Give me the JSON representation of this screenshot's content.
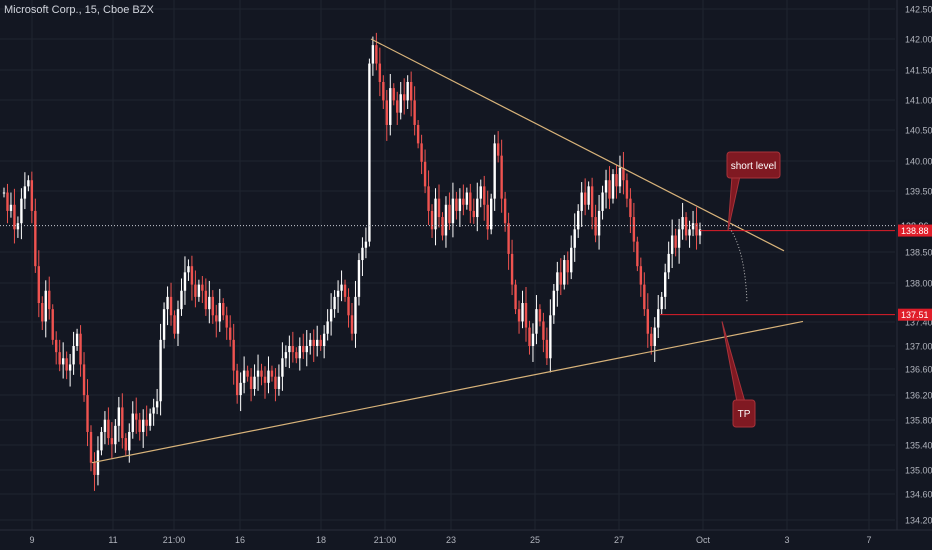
{
  "header": {
    "symbol_title": "Microsoft Corp., 15, Cboe BZX"
  },
  "colors": {
    "background": "#131722",
    "grid": "#1f2430",
    "axis_text": "#b2b5be",
    "candle_up": "#ffffff",
    "candle_down": "#ef5350",
    "trendline": "#d8b37a",
    "price_label": "#e01e2a",
    "callout_fill": "#801922",
    "current_line": "#c9ccd4"
  },
  "chart_data": {
    "type": "candlestick",
    "title": "Microsoft Corp., 15, Cboe BZX",
    "x_tick_labels": [
      "9",
      "11",
      "21:00",
      "16",
      "18",
      "21:00",
      "23",
      "25",
      "27",
      "Oct",
      "3",
      "7"
    ],
    "y_tick_labels": [
      "142.50",
      "142.00",
      "141.50",
      "141.00",
      "140.50",
      "140.00",
      "139.50",
      "138.50",
      "138.00",
      "137.40",
      "137.00",
      "136.60",
      "136.20",
      "135.80",
      "135.40",
      "135.00",
      "134.60",
      "134.20"
    ],
    "ylim": [
      134.1,
      142.6
    ],
    "price_labels": [
      {
        "value": 138.96,
        "text": "138.96",
        "style": "plain"
      },
      {
        "value": 138.88,
        "text": "138.88",
        "style": "red"
      },
      {
        "value": 137.51,
        "text": "137.51",
        "style": "red"
      }
    ],
    "close_series": [
      139.5,
      139.2,
      139.3,
      138.9,
      139.0,
      139.4,
      139.6,
      139.7,
      139.2,
      138.3,
      137.7,
      137.4,
      137.9,
      137.6,
      137.1,
      136.9,
      136.7,
      136.8,
      136.6,
      136.7,
      137.0,
      137.2,
      136.7,
      136.2,
      135.6,
      135.1,
      134.9,
      135.3,
      135.6,
      135.8,
      135.5,
      135.4,
      135.7,
      136.0,
      135.5,
      135.3,
      135.6,
      135.9,
      135.8,
      135.6,
      135.8,
      135.7,
      135.9,
      136.0,
      136.1,
      137.1,
      137.6,
      137.8,
      137.5,
      137.2,
      137.6,
      137.9,
      138.2,
      138.3,
      138.0,
      137.8,
      138.0,
      137.9,
      137.6,
      137.8,
      137.5,
      137.4,
      137.7,
      137.5,
      137.3,
      137.1,
      136.6,
      136.2,
      136.4,
      136.6,
      136.5,
      136.3,
      136.5,
      136.6,
      136.5,
      136.4,
      136.6,
      136.5,
      136.3,
      136.5,
      136.8,
      136.9,
      137.0,
      136.9,
      136.8,
      137.0,
      136.9,
      137.0,
      137.1,
      137.0,
      137.1,
      137.0,
      137.2,
      137.4,
      137.6,
      137.8,
      137.9,
      138.0,
      137.8,
      137.5,
      137.2,
      137.8,
      138.4,
      138.6,
      138.7,
      141.6,
      141.9,
      141.6,
      141.3,
      141.0,
      140.6,
      141.2,
      141.0,
      140.8,
      141.1,
      141.0,
      141.3,
      141.0,
      140.6,
      140.3,
      140.0,
      139.6,
      139.2,
      138.9,
      139.4,
      139.1,
      138.8,
      139.3,
      139.0,
      139.4,
      139.2,
      139.4,
      139.3,
      139.5,
      139.2,
      139.1,
      139.4,
      139.6,
      139.3,
      138.9,
      139.4,
      140.3,
      140.1,
      139.4,
      139.0,
      138.5,
      138.0,
      137.6,
      137.4,
      137.7,
      137.3,
      137.0,
      137.2,
      137.6,
      137.4,
      137.1,
      136.8,
      137.5,
      137.9,
      138.2,
      138.0,
      138.4,
      138.2,
      138.6,
      138.9,
      139.2,
      139.5,
      139.3,
      139.6,
      139.1,
      138.8,
      139.2,
      139.5,
      139.7,
      139.4,
      139.8,
      139.6,
      139.9,
      139.7,
      139.4,
      139.1,
      138.7,
      138.3,
      138.0,
      137.6,
      137.2,
      137.0,
      137.3,
      137.6,
      137.8,
      138.2,
      138.5,
      138.8,
      138.6,
      138.9,
      139.1,
      138.8,
      138.9,
      139.0,
      138.8,
      138.9
    ],
    "drawings": [
      {
        "kind": "trendline",
        "name": "upper-trendline",
        "from": [
          371,
          142.0
        ],
        "to": [
          784,
          138.55
        ]
      },
      {
        "kind": "trendline",
        "name": "lower-trendline",
        "from": [
          92,
          135.1
        ],
        "to": [
          803,
          137.4
        ]
      },
      {
        "kind": "hline",
        "name": "current-price-line",
        "value": 138.96
      },
      {
        "kind": "hline",
        "name": "red-level-line",
        "value": 138.88,
        "start_bar_x": 700
      },
      {
        "kind": "hline",
        "name": "tp-level-line",
        "value": 137.51,
        "start_bar_x": 660
      }
    ],
    "annotations": [
      {
        "name": "short-level-callout",
        "text": "short level",
        "anchor_value": 138.88
      },
      {
        "name": "tp-callout",
        "text": "TP",
        "anchor_value": 137.4
      }
    ]
  }
}
